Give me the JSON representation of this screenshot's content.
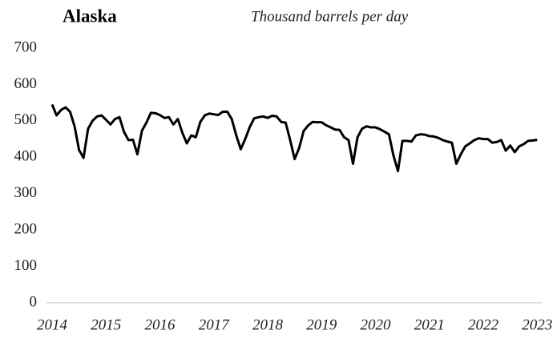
{
  "chart_data": {
    "type": "line",
    "title": "Alaska",
    "subtitle": "Thousand barrels per day",
    "x": [
      2014,
      2014.083,
      2014.167,
      2014.25,
      2014.333,
      2014.417,
      2014.5,
      2014.583,
      2014.667,
      2014.75,
      2014.833,
      2014.917,
      2015,
      2015.083,
      2015.167,
      2015.25,
      2015.333,
      2015.417,
      2015.5,
      2015.583,
      2015.667,
      2015.75,
      2015.833,
      2015.917,
      2016,
      2016.083,
      2016.167,
      2016.25,
      2016.333,
      2016.417,
      2016.5,
      2016.583,
      2016.667,
      2016.75,
      2016.833,
      2016.917,
      2017,
      2017.083,
      2017.167,
      2017.25,
      2017.333,
      2017.417,
      2017.5,
      2017.583,
      2017.667,
      2017.75,
      2017.833,
      2017.917,
      2018,
      2018.083,
      2018.167,
      2018.25,
      2018.333,
      2018.417,
      2018.5,
      2018.583,
      2018.667,
      2018.75,
      2018.833,
      2018.917,
      2019,
      2019.083,
      2019.167,
      2019.25,
      2019.333,
      2019.417,
      2019.5,
      2019.583,
      2019.667,
      2019.75,
      2019.833,
      2019.917,
      2020,
      2020.083,
      2020.167,
      2020.25,
      2020.333,
      2020.417,
      2020.5,
      2020.583,
      2020.667,
      2020.75,
      2020.833,
      2020.917,
      2021,
      2021.083,
      2021.167,
      2021.25,
      2021.333,
      2021.417,
      2021.5,
      2021.583,
      2021.667,
      2021.75,
      2021.833,
      2021.917,
      2022,
      2022.083,
      2022.167,
      2022.25,
      2022.333,
      2022.417,
      2022.5,
      2022.583,
      2022.667,
      2022.75,
      2022.833,
      2022.917,
      2023
    ],
    "series": [
      {
        "color": "#000000",
        "values": [
          545,
          515,
          530,
          537,
          525,
          485,
          420,
          398,
          478,
          500,
          512,
          515,
          503,
          490,
          505,
          510,
          470,
          447,
          448,
          408,
          473,
          495,
          522,
          521,
          516,
          508,
          510,
          490,
          505,
          467,
          438,
          460,
          455,
          497,
          515,
          520,
          518,
          516,
          525,
          525,
          505,
          460,
          422,
          450,
          483,
          507,
          510,
          512,
          508,
          514,
          512,
          497,
          495,
          447,
          395,
          425,
          472,
          487,
          497,
          496,
          496,
          488,
          482,
          476,
          475,
          455,
          447,
          382,
          455,
          478,
          485,
          482,
          482,
          477,
          470,
          463,
          405,
          362,
          445,
          445,
          443,
          460,
          463,
          462,
          458,
          457,
          453,
          447,
          443,
          440,
          382,
          408,
          430,
          438,
          447,
          452,
          450,
          450,
          440,
          442,
          447,
          418,
          432,
          414,
          430,
          436,
          445,
          446,
          448
        ]
      }
    ],
    "xlim": [
      2014,
      2023.1
    ],
    "xticks": [
      2014,
      2015,
      2016,
      2017,
      2018,
      2019,
      2020,
      2021,
      2022,
      2023
    ],
    "ylim": [
      0,
      700
    ],
    "yticks": [
      0,
      100,
      200,
      300,
      400,
      500,
      600,
      700
    ],
    "grid": false
  }
}
